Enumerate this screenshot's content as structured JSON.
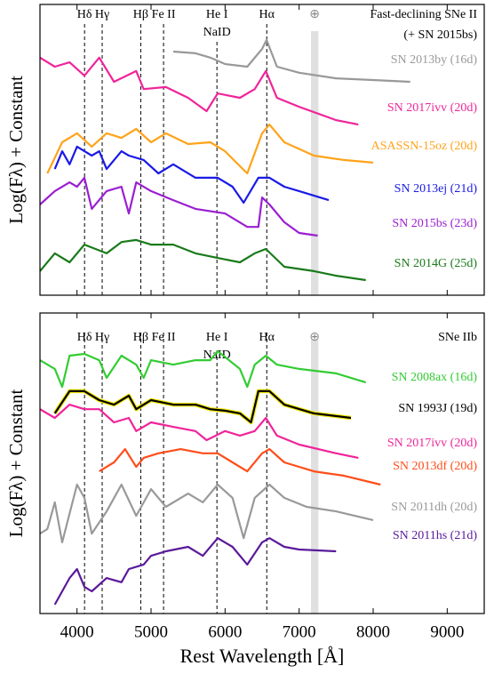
{
  "chart_data": [
    {
      "type": "line",
      "title": [
        "Fast-declining SNe II",
        "(+ SN 2015bs)"
      ],
      "ylabel": "Log(Fλ) + Constant",
      "xlim": [
        3500,
        9500
      ],
      "ylim": [
        0,
        10
      ],
      "xticks": [
        4000,
        5000,
        6000,
        7000,
        8000,
        9000
      ],
      "xtick_labels": false,
      "annotations": [
        {
          "label": [
            "Hδ"
          ],
          "x": 4102
        },
        {
          "label": [
            "Hγ"
          ],
          "x": 4340
        },
        {
          "label": [
            "Hβ"
          ],
          "x": 4861
        },
        {
          "label": [
            "Fe II"
          ],
          "x": 5169
        },
        {
          "label": [
            "He I",
            "NaID"
          ],
          "x": 5890
        },
        {
          "label": [
            "Hα"
          ],
          "x": 6563
        }
      ],
      "band": {
        "label": "⊕",
        "x": [
          7160,
          7260
        ]
      },
      "series": [
        {
          "name": "SN 2013by (16d)",
          "color": "#999999",
          "x": [
            5300,
            5600,
            5800,
            6000,
            6300,
            6500,
            6560,
            6700,
            7000,
            7500,
            8000,
            8500
          ],
          "values": [
            8.38,
            8.32,
            8.17,
            7.95,
            7.86,
            8.47,
            8.78,
            7.86,
            7.65,
            7.46,
            7.4,
            7.34
          ]
        },
        {
          "name": "SN 2017ivv (20d)",
          "color": "#f0249a",
          "x": [
            3500,
            3700,
            3900,
            4100,
            4300,
            4500,
            4800,
            4900,
            5200,
            5500,
            5750,
            5900,
            6200,
            6400,
            6550,
            6700,
            7000,
            7500,
            7800
          ],
          "values": [
            8.17,
            7.86,
            8.01,
            7.55,
            8.17,
            7.34,
            7.71,
            7.09,
            7.16,
            6.79,
            6.33,
            6.94,
            6.79,
            7.09,
            7.71,
            6.79,
            6.48,
            6.02,
            5.87
          ]
        },
        {
          "name": "ASASSN-15oz (20d)",
          "color": "#ffa31a",
          "x": [
            3600,
            3800,
            4000,
            4200,
            4400,
            4600,
            4800,
            5000,
            5200,
            5500,
            5800,
            6000,
            6300,
            6500,
            6600,
            6800,
            7200,
            7600,
            8000
          ],
          "values": [
            4.19,
            5.26,
            5.57,
            5.11,
            5.57,
            5.41,
            5.72,
            5.26,
            5.57,
            5.2,
            5.26,
            4.95,
            4.19,
            5.57,
            5.87,
            5.26,
            4.8,
            4.65,
            4.56
          ]
        },
        {
          "name": "SN 2013ej (21d)",
          "color": "#1a1ae6",
          "x": [
            3700,
            3800,
            3900,
            4000,
            4200,
            4300,
            4400,
            4600,
            4700,
            4900,
            5100,
            5300,
            5600,
            5900,
            6100,
            6250,
            6450,
            6600,
            6800,
            7000,
            7400
          ],
          "values": [
            4.34,
            4.95,
            4.5,
            5.11,
            4.8,
            4.95,
            4.34,
            4.95,
            4.8,
            4.65,
            4.19,
            4.5,
            4.04,
            4.04,
            3.73,
            3.18,
            4.04,
            4.04,
            3.73,
            3.58,
            3.27
          ]
        },
        {
          "name": "SN 2015bs (23d)",
          "color": "#9a1fd1",
          "x": [
            3500,
            3700,
            3900,
            4000,
            4100,
            4200,
            4400,
            4600,
            4700,
            4800,
            5000,
            5300,
            5600,
            6000,
            6300,
            6450,
            6500,
            6600,
            6800,
            7000,
            7250
          ],
          "values": [
            3.12,
            3.58,
            3.88,
            3.73,
            4.04,
            2.97,
            3.58,
            3.73,
            2.81,
            3.88,
            3.58,
            3.27,
            2.97,
            2.81,
            2.35,
            2.35,
            3.36,
            3.12,
            2.51,
            2.14,
            2.05
          ]
        },
        {
          "name": "SN 2014G (25d)",
          "color": "#1a7a1a",
          "x": [
            3500,
            3700,
            3900,
            4100,
            4400,
            4600,
            4800,
            5000,
            5300,
            5600,
            5900,
            6200,
            6400,
            6550,
            6800,
            7200,
            7500,
            7900
          ],
          "values": [
            0.83,
            1.44,
            1.13,
            1.74,
            1.44,
            1.83,
            1.9,
            1.74,
            1.74,
            1.44,
            1.28,
            1.13,
            1.44,
            1.59,
            0.98,
            0.83,
            0.67,
            0.52
          ]
        }
      ]
    },
    {
      "type": "line",
      "title": [
        "SNe IIb"
      ],
      "ylabel": "Log(Fλ) + Constant",
      "xlabel": "Rest Wavelength [Å]",
      "xlim": [
        3500,
        9500
      ],
      "ylim": [
        0,
        10
      ],
      "xticks": [
        4000,
        5000,
        6000,
        7000,
        8000,
        9000
      ],
      "xtick_labels": true,
      "annotations": [
        {
          "label": [
            "Hδ"
          ],
          "x": 4102
        },
        {
          "label": [
            "Hγ"
          ],
          "x": 4340
        },
        {
          "label": [
            "Hβ"
          ],
          "x": 4861
        },
        {
          "label": [
            "Fe II"
          ],
          "x": 5169
        },
        {
          "label": [
            "He I",
            "NaID"
          ],
          "x": 5890
        },
        {
          "label": [
            "Hα"
          ],
          "x": 6563
        }
      ],
      "band": {
        "label": "⊕",
        "x": [
          7160,
          7260
        ]
      },
      "series": [
        {
          "name": "SN 2008ax (16d)",
          "color": "#33cc33",
          "x": [
            3500,
            3700,
            3800,
            3900,
            4100,
            4300,
            4400,
            4600,
            4800,
            4900,
            5000,
            5300,
            5600,
            5800,
            5900,
            6200,
            6300,
            6400,
            6550,
            6700,
            7000,
            7500,
            7900
          ],
          "values": [
            8.43,
            8.14,
            7.54,
            8.58,
            8.64,
            8.43,
            7.84,
            8.58,
            8.28,
            7.84,
            8.43,
            8.28,
            8.43,
            8.43,
            8.73,
            8.14,
            7.54,
            8.28,
            8.58,
            8.28,
            8.14,
            7.99,
            7.69
          ]
        },
        {
          "name": "SN 1993J (19d)",
          "color": "#000000",
          "edgecolor": "#f2e600",
          "x": [
            3700,
            3900,
            4100,
            4300,
            4500,
            4700,
            4800,
            5000,
            5300,
            5600,
            5800,
            6000,
            6200,
            6350,
            6450,
            6600,
            6800,
            7200,
            7700
          ],
          "values": [
            6.66,
            7.4,
            7.4,
            7.1,
            6.95,
            7.25,
            6.8,
            7.1,
            6.95,
            6.95,
            6.8,
            6.75,
            6.66,
            6.36,
            7.4,
            7.4,
            6.95,
            6.66,
            6.51
          ]
        },
        {
          "name": "SN 2017ivv (20d)",
          "color": "#f0249a",
          "x": [
            3500,
            3700,
            3900,
            4100,
            4300,
            4500,
            4700,
            4800,
            5000,
            5300,
            5600,
            5750,
            6000,
            6200,
            6400,
            6550,
            6700,
            7000,
            7500,
            7800
          ],
          "values": [
            6.8,
            6.51,
            6.95,
            6.8,
            6.8,
            6.36,
            6.51,
            6.07,
            6.36,
            6.21,
            6.07,
            5.77,
            6.07,
            5.92,
            6.07,
            6.51,
            5.92,
            5.62,
            5.33,
            5.18
          ]
        },
        {
          "name": "SN 2013df (20d)",
          "color": "#ff4d1a",
          "x": [
            4300,
            4500,
            4650,
            4800,
            4900,
            5100,
            5400,
            5700,
            5900,
            6100,
            6300,
            6500,
            6600,
            6800,
            7200,
            7600,
            8100
          ],
          "values": [
            4.73,
            5.03,
            5.47,
            4.88,
            5.18,
            5.33,
            5.47,
            5.33,
            5.33,
            5.03,
            4.73,
            5.33,
            5.47,
            5.03,
            4.73,
            4.59,
            4.29
          ]
        },
        {
          "name": "SN 2011dh (20d)",
          "color": "#999999",
          "x": [
            3500,
            3600,
            3700,
            3800,
            4000,
            4100,
            4200,
            4400,
            4600,
            4800,
            5000,
            5200,
            5500,
            5700,
            5900,
            6100,
            6250,
            6400,
            6600,
            6800,
            7100,
            7500,
            8000
          ],
          "values": [
            2.66,
            2.81,
            3.7,
            2.37,
            4.29,
            3.85,
            2.66,
            3.4,
            4.29,
            3.25,
            4.14,
            3.55,
            3.99,
            3.7,
            4.29,
            3.85,
            2.51,
            3.85,
            4.29,
            3.85,
            3.55,
            3.4,
            3.11
          ]
        },
        {
          "name": "SN 2011hs (21d)",
          "color": "#5a1a9a",
          "x": [
            3700,
            3900,
            4000,
            4100,
            4200,
            4400,
            4600,
            4700,
            4900,
            5000,
            5200,
            5500,
            5700,
            5900,
            6100,
            6300,
            6500,
            6600,
            6800,
            7000,
            7500
          ],
          "values": [
            0.3,
            1.18,
            1.48,
            0.89,
            0.74,
            1.18,
            1.04,
            1.48,
            1.63,
            1.92,
            2.07,
            2.22,
            1.92,
            2.51,
            2.22,
            1.63,
            2.37,
            2.51,
            2.22,
            2.13,
            2.07
          ]
        }
      ]
    }
  ]
}
